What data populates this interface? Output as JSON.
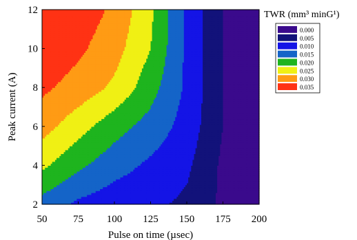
{
  "chart_data": {
    "type": "heatmap",
    "title": "",
    "xlabel": "Pulse on time (µsec)",
    "ylabel": "Peak current (A)",
    "xlim": [
      50,
      200
    ],
    "ylim": [
      2,
      12
    ],
    "x_ticks": [
      "50",
      "75",
      "100",
      "125",
      "150",
      "175",
      "200"
    ],
    "y_ticks": [
      "2",
      "4",
      "6",
      "8",
      "10",
      "12"
    ],
    "x_tick_values": [
      50,
      75,
      100,
      125,
      150,
      175,
      200
    ],
    "y_tick_values": [
      2,
      4,
      6,
      8,
      10,
      12
    ],
    "legend": {
      "title": "TWR (mm³ minG¹)",
      "placement": "right",
      "levels": [
        {
          "value": 0.0,
          "label": "0.000",
          "color": "#3a0a8c"
        },
        {
          "value": 0.005,
          "label": "0.005",
          "color": "#12127a"
        },
        {
          "value": 0.01,
          "label": "0.010",
          "color": "#1414e6"
        },
        {
          "value": 0.015,
          "label": "0.015",
          "color": "#1464c8"
        },
        {
          "value": 0.02,
          "label": "0.020",
          "color": "#1eb41e"
        },
        {
          "value": 0.025,
          "label": "0.025",
          "color": "#f0f014"
        },
        {
          "value": 0.03,
          "label": "0.030",
          "color": "#ff9b14"
        },
        {
          "value": 0.035,
          "label": "0.035",
          "color": "#ff3214"
        }
      ]
    },
    "grid_x": [
      50,
      75,
      100,
      125,
      150,
      175,
      200
    ],
    "grid_y": [
      2,
      4,
      6,
      8,
      10,
      12
    ],
    "z": [
      [
        0.018,
        0.014,
        0.012,
        0.011,
        0.009,
        0.004,
        0.0
      ],
      [
        0.026,
        0.021,
        0.017,
        0.014,
        0.011,
        0.004,
        0.0
      ],
      [
        0.032,
        0.027,
        0.022,
        0.018,
        0.013,
        0.005,
        0.0
      ],
      [
        0.036,
        0.033,
        0.029,
        0.022,
        0.014,
        0.005,
        0.0
      ],
      [
        0.039,
        0.036,
        0.032,
        0.025,
        0.014,
        0.005,
        0.0
      ],
      [
        0.04,
        0.038,
        0.034,
        0.026,
        0.014,
        0.005,
        0.0
      ]
    ]
  }
}
